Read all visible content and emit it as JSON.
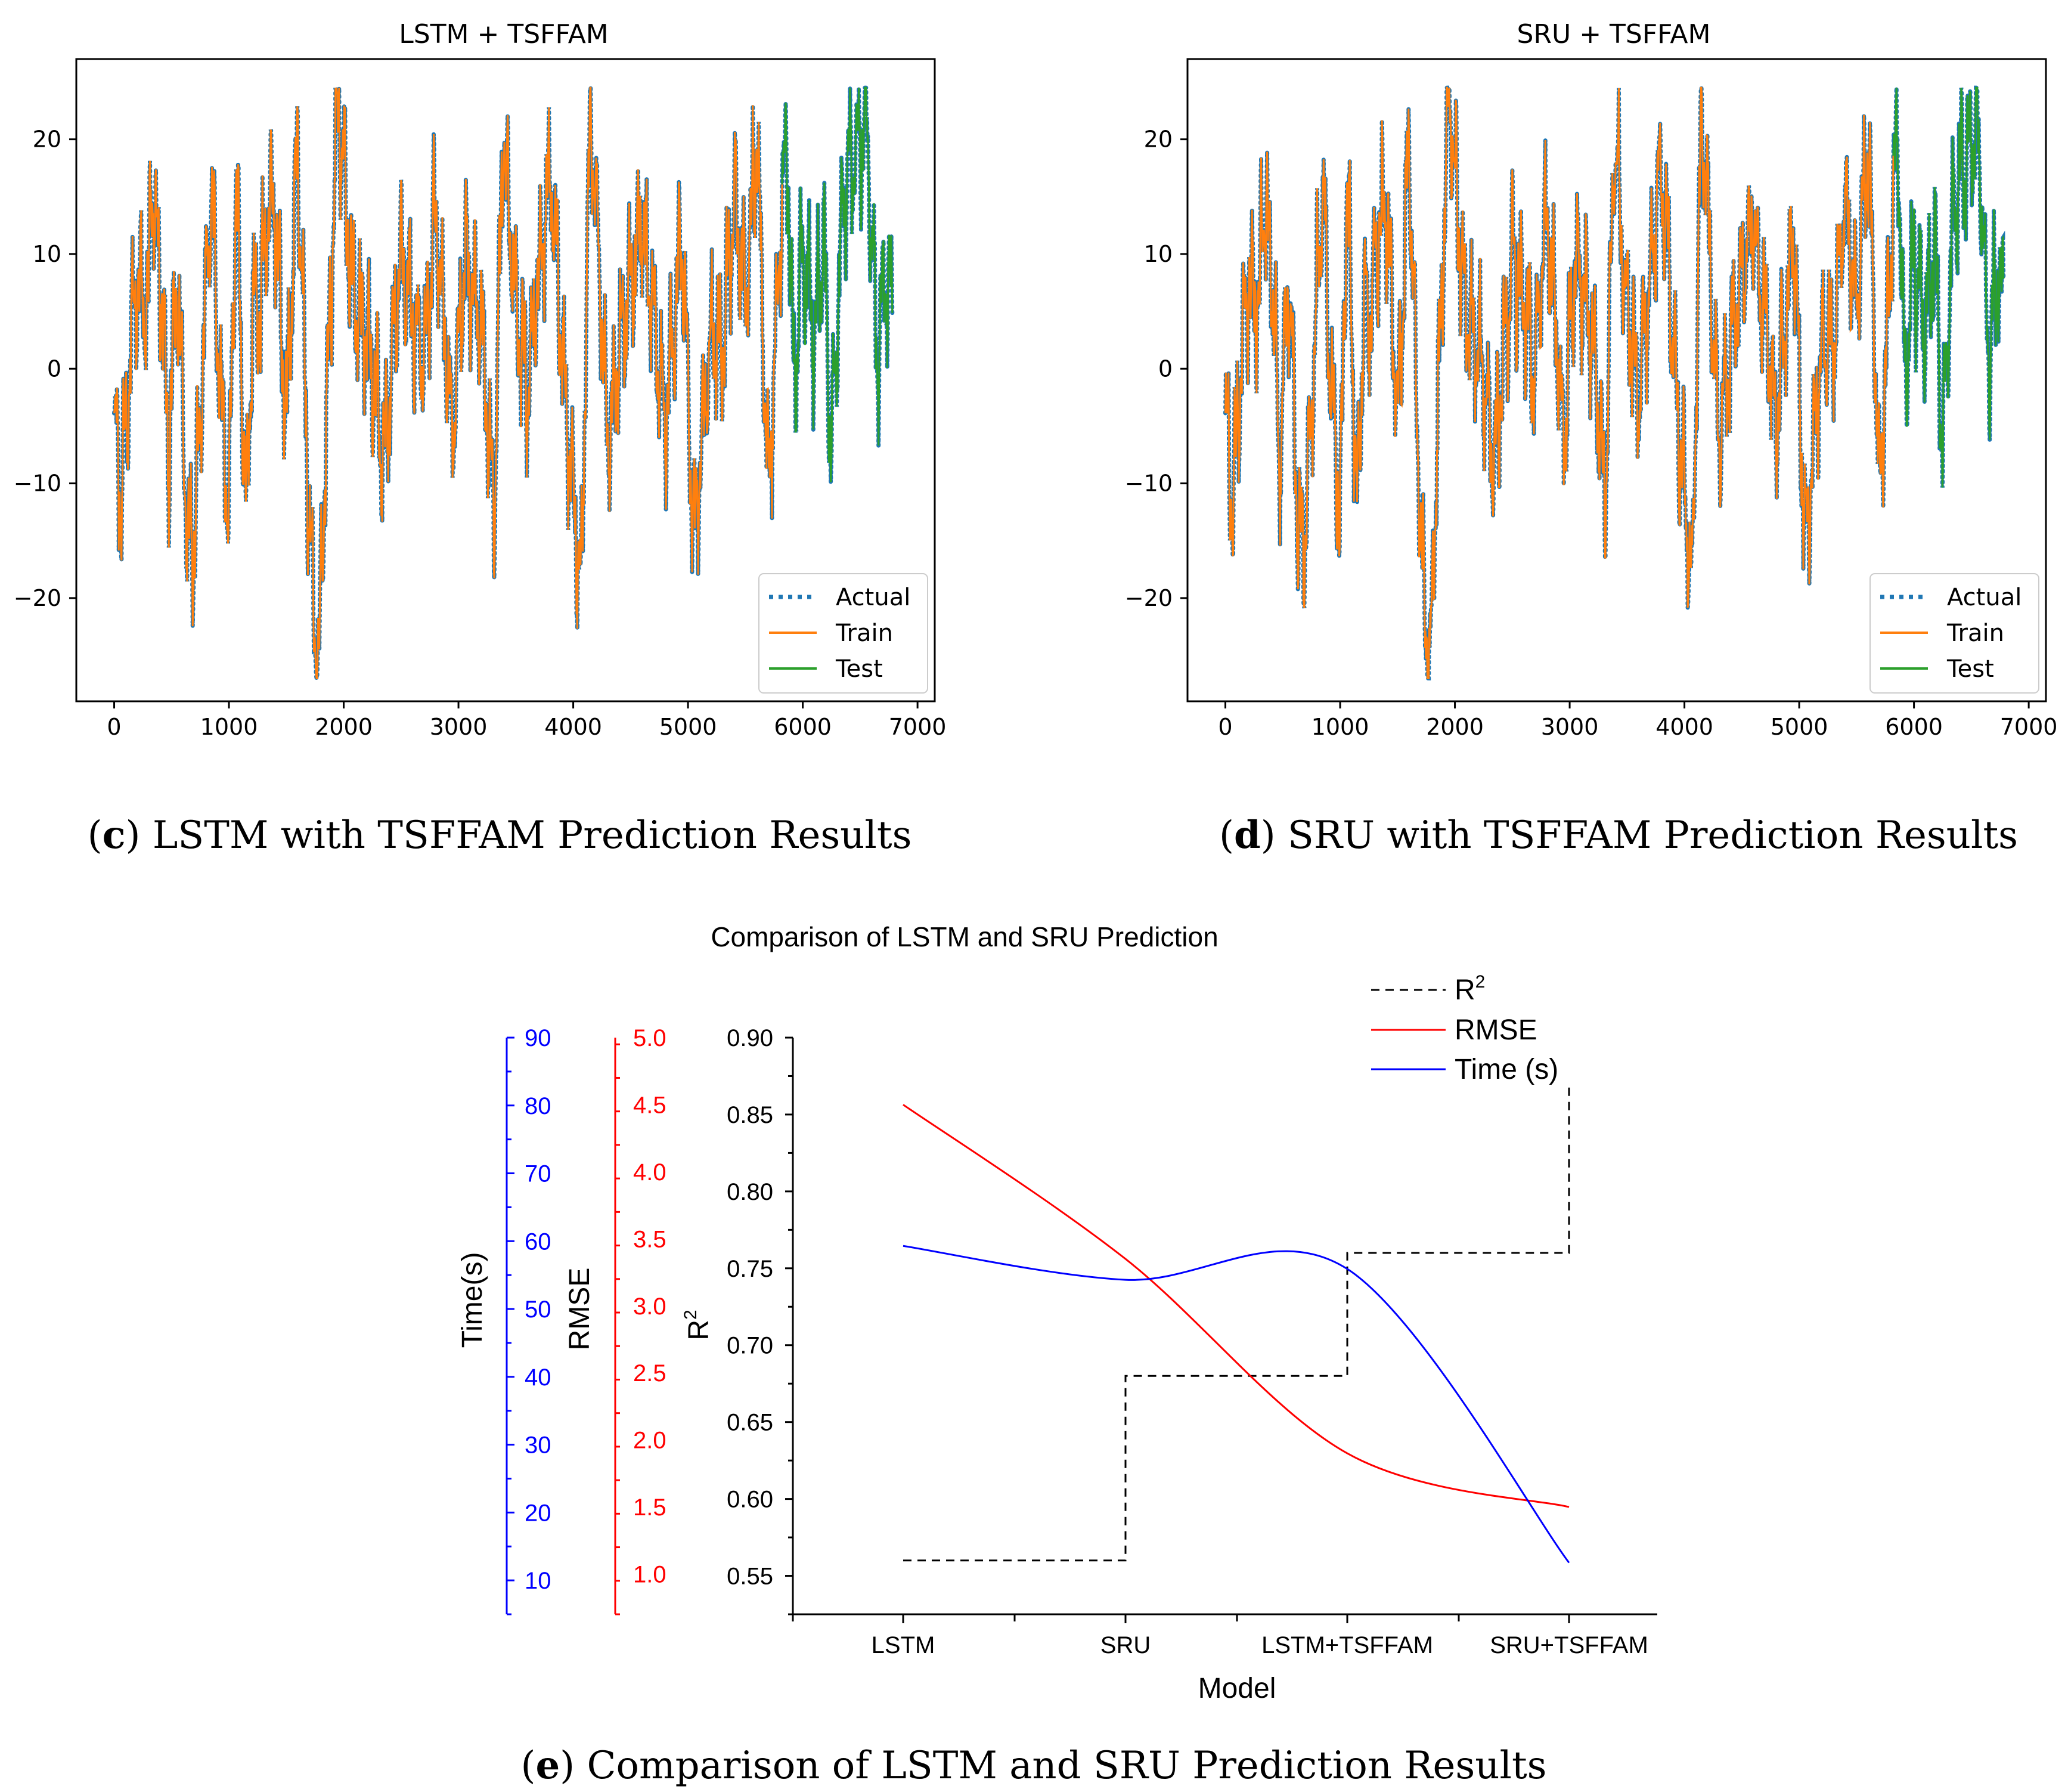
{
  "chart_data": [
    {
      "type": "line",
      "title": "LSTM + TSFFAM",
      "caption": {
        "letter": "c",
        "text": "LSTM with TSFFAM Prediction Results"
      },
      "xlim": [
        -330,
        7150
      ],
      "ylim": [
        -29,
        27
      ],
      "x_ticks": [
        0,
        1000,
        2000,
        3000,
        4000,
        5000,
        6000,
        7000
      ],
      "y_ticks": [
        -20,
        -10,
        0,
        10,
        20
      ],
      "legend_position": "lower-right",
      "series": [
        {
          "name": "Actual",
          "color": "#1f77b4",
          "style": "dotted"
        },
        {
          "name": "Train",
          "color": "#ff7f0e",
          "style": "solid"
        },
        {
          "name": "Test",
          "color": "#2ca02c",
          "style": "solid"
        }
      ],
      "n_points": 6780,
      "train_end": 5820,
      "key_points": [
        [
          0,
          -4
        ],
        [
          60,
          -12
        ],
        [
          150,
          3
        ],
        [
          200,
          7
        ],
        [
          300,
          5
        ],
        [
          320,
          16
        ],
        [
          420,
          6
        ],
        [
          470,
          -8
        ],
        [
          550,
          8
        ],
        [
          640,
          -15
        ],
        [
          700,
          -14
        ],
        [
          800,
          7
        ],
        [
          850,
          16
        ],
        [
          900,
          2
        ],
        [
          1000,
          -13
        ],
        [
          1060,
          17
        ],
        [
          1150,
          -13
        ],
        [
          1210,
          6
        ],
        [
          1270,
          4
        ],
        [
          1300,
          10
        ],
        [
          1400,
          15
        ],
        [
          1500,
          -5
        ],
        [
          1600,
          20
        ],
        [
          1700,
          -14
        ],
        [
          1780,
          -27
        ],
        [
          1850,
          -4
        ],
        [
          1950,
          24
        ],
        [
          2050,
          10
        ],
        [
          2100,
          5
        ],
        [
          2200,
          3
        ],
        [
          2350,
          -8
        ],
        [
          2500,
          10
        ],
        [
          2700,
          0
        ],
        [
          2800,
          14
        ],
        [
          2950,
          -6
        ],
        [
          3050,
          10
        ],
        [
          3200,
          3
        ],
        [
          3310,
          -12
        ],
        [
          3390,
          21
        ],
        [
          3500,
          5
        ],
        [
          3600,
          -2
        ],
        [
          3800,
          18
        ],
        [
          3950,
          -5
        ],
        [
          4070,
          -19
        ],
        [
          4150,
          24
        ],
        [
          4300,
          -6
        ],
        [
          4450,
          5
        ],
        [
          4600,
          13
        ],
        [
          4800,
          -5
        ],
        [
          4950,
          12
        ],
        [
          5050,
          -15
        ],
        [
          5200,
          3
        ],
        [
          5300,
          2
        ],
        [
          5400,
          15
        ],
        [
          5500,
          6
        ],
        [
          5600,
          20
        ],
        [
          5700,
          -11
        ],
        [
          5800,
          10
        ],
        [
          5820,
          15
        ],
        [
          5870,
          19
        ],
        [
          5920,
          -2
        ],
        [
          6000,
          10
        ],
        [
          6100,
          3
        ],
        [
          6180,
          11
        ],
        [
          6250,
          -7
        ],
        [
          6350,
          15
        ],
        [
          6450,
          18
        ],
        [
          6550,
          22
        ],
        [
          6600,
          12
        ],
        [
          6650,
          0
        ],
        [
          6720,
          9
        ],
        [
          6780,
          5
        ]
      ]
    },
    {
      "type": "line",
      "title": "SRU + TSFFAM",
      "caption": {
        "letter": "d",
        "text": "SRU with TSFFAM Prediction Results"
      },
      "xlim": [
        -330,
        7150
      ],
      "ylim": [
        -29,
        27
      ],
      "x_ticks": [
        0,
        1000,
        2000,
        3000,
        4000,
        5000,
        6000,
        7000
      ],
      "y_ticks": [
        -20,
        -10,
        0,
        10,
        20
      ],
      "legend_position": "lower-right",
      "series": [
        {
          "name": "Actual",
          "color": "#1f77b4",
          "style": "dotted"
        },
        {
          "name": "Train",
          "color": "#ff7f0e",
          "style": "solid"
        },
        {
          "name": "Test",
          "color": "#2ca02c",
          "style": "solid"
        }
      ],
      "n_points": 6780,
      "train_end": 5820,
      "key_points": [
        [
          0,
          -4
        ],
        [
          60,
          -12
        ],
        [
          150,
          3
        ],
        [
          200,
          7
        ],
        [
          300,
          5
        ],
        [
          320,
          16
        ],
        [
          420,
          6
        ],
        [
          470,
          -8
        ],
        [
          550,
          8
        ],
        [
          640,
          -15
        ],
        [
          700,
          -14
        ],
        [
          800,
          7
        ],
        [
          850,
          16
        ],
        [
          900,
          2
        ],
        [
          1000,
          -13
        ],
        [
          1060,
          17
        ],
        [
          1150,
          -13
        ],
        [
          1210,
          6
        ],
        [
          1270,
          4
        ],
        [
          1300,
          10
        ],
        [
          1400,
          15
        ],
        [
          1500,
          -5
        ],
        [
          1600,
          20
        ],
        [
          1700,
          -14
        ],
        [
          1780,
          -27
        ],
        [
          1850,
          -4
        ],
        [
          1950,
          24
        ],
        [
          2050,
          10
        ],
        [
          2100,
          5
        ],
        [
          2200,
          3
        ],
        [
          2350,
          -8
        ],
        [
          2500,
          10
        ],
        [
          2700,
          0
        ],
        [
          2800,
          14
        ],
        [
          2950,
          -6
        ],
        [
          3050,
          10
        ],
        [
          3200,
          3
        ],
        [
          3310,
          -12
        ],
        [
          3390,
          21
        ],
        [
          3500,
          5
        ],
        [
          3600,
          -2
        ],
        [
          3800,
          18
        ],
        [
          3950,
          -5
        ],
        [
          4070,
          -19
        ],
        [
          4150,
          24
        ],
        [
          4300,
          -6
        ],
        [
          4450,
          5
        ],
        [
          4600,
          13
        ],
        [
          4800,
          -5
        ],
        [
          4950,
          12
        ],
        [
          5050,
          -15
        ],
        [
          5200,
          3
        ],
        [
          5300,
          2
        ],
        [
          5400,
          15
        ],
        [
          5500,
          6
        ],
        [
          5600,
          20
        ],
        [
          5700,
          -11
        ],
        [
          5800,
          10
        ],
        [
          5820,
          15
        ],
        [
          5870,
          19
        ],
        [
          5920,
          -2
        ],
        [
          6000,
          10
        ],
        [
          6100,
          3
        ],
        [
          6180,
          11
        ],
        [
          6250,
          -7
        ],
        [
          6350,
          15
        ],
        [
          6450,
          18
        ],
        [
          6550,
          22
        ],
        [
          6600,
          12
        ],
        [
          6650,
          0
        ],
        [
          6720,
          9
        ],
        [
          6780,
          5
        ]
      ]
    },
    {
      "type": "line",
      "title": "Comparison of LSTM and SRU Prediction",
      "caption": {
        "letter": "e",
        "text": "Comparison of LSTM and SRU Prediction Results"
      },
      "categories": [
        "LSTM",
        "SRU",
        "LSTM+TSFFAM",
        "SRU+TSFFAM"
      ],
      "xlabel": "Model",
      "axes": [
        {
          "label": "Time(s)",
          "color": "#0000ff",
          "range": [
            5,
            90
          ],
          "ticks": [
            10,
            20,
            30,
            40,
            50,
            60,
            70,
            80,
            90
          ]
        },
        {
          "label": "RMSE",
          "color": "#ff0000",
          "range": [
            0.7,
            5.0
          ],
          "ticks": [
            "1.0",
            "1.5",
            "2.0",
            "2.5",
            "3.0",
            "3.5",
            "4.0",
            "4.5",
            "5.0"
          ]
        },
        {
          "label": "R",
          "label_sup": "2",
          "color": "#000000",
          "range": [
            0.525,
            0.9
          ],
          "ticks": [
            "0.55",
            "0.60",
            "0.65",
            "0.70",
            "0.75",
            "0.80",
            "0.85",
            "0.90"
          ]
        }
      ],
      "series": [
        {
          "name": "R",
          "name_sup": "2",
          "axis": "R2",
          "color": "#000000",
          "style": "dashed-step",
          "values": [
            0.56,
            0.68,
            0.76,
            0.87
          ]
        },
        {
          "name": "RMSE",
          "axis": "RMSE",
          "color": "#ff0000",
          "style": "smooth",
          "values": [
            4.5,
            3.35,
            1.9,
            1.5
          ]
        },
        {
          "name": "Time (s)",
          "axis": "Time",
          "color": "#0000ff",
          "style": "smooth",
          "values": [
            59.3,
            54.3,
            55.9,
            12.6
          ]
        }
      ]
    }
  ]
}
